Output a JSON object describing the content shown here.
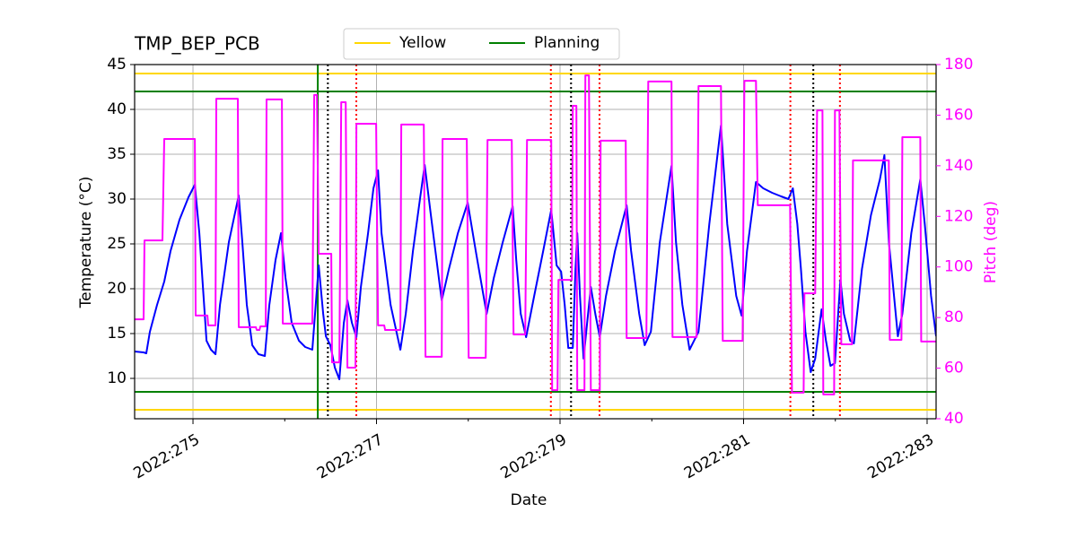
{
  "chart_data": {
    "type": "line",
    "title": "TMP_BEP_PCB",
    "xlabel": "Date",
    "ylabel": "Temperature (°C)",
    "y2label": "Pitch (deg)",
    "xlim": [
      274.364,
      283.098
    ],
    "xticks": [
      {
        "value": 275,
        "label": "2022:275"
      },
      {
        "value": 277,
        "label": "2022:277"
      },
      {
        "value": 279,
        "label": "2022:279"
      },
      {
        "value": 281,
        "label": "2022:281"
      },
      {
        "value": 283,
        "label": "2022:283"
      }
    ],
    "xminorticks": [
      276,
      278,
      280,
      282
    ],
    "ylim": [
      5.5,
      45
    ],
    "yticks": [
      10,
      15,
      20,
      25,
      30,
      35,
      40,
      45
    ],
    "y2lim": [
      40,
      180
    ],
    "y2ticks": [
      40,
      60,
      80,
      100,
      120,
      140,
      160,
      180
    ],
    "y2color": "#ff00ff",
    "grid": true,
    "legend": "upper center",
    "limits": [
      {
        "name": "Yellow",
        "color": "#ffd700",
        "values": [
          44,
          6.5
        ]
      },
      {
        "name": "Planning",
        "color": "#008000",
        "values": [
          42,
          8.5
        ]
      }
    ],
    "vlines": [
      {
        "color": "#008000",
        "style": "solid",
        "x": [
          276.36
        ]
      },
      {
        "color": "#000000",
        "style": "dotted",
        "x": [
          276.47,
          279.12,
          281.76
        ]
      },
      {
        "color": "#ff0000",
        "style": "dotted",
        "x": [
          276.78,
          278.9,
          279.43,
          281.51,
          282.05
        ]
      }
    ],
    "series": [
      {
        "color": "#0000ff",
        "axis": "y",
        "x": [
          274.364,
          274.462,
          274.491,
          274.53,
          274.609,
          274.687,
          274.755,
          274.853,
          274.951,
          275.02,
          275.069,
          275.147,
          275.196,
          275.245,
          275.294,
          275.391,
          275.499,
          275.538,
          275.587,
          275.646,
          275.714,
          275.783,
          275.832,
          275.9,
          275.959,
          276.008,
          276.076,
          276.155,
          276.223,
          276.301,
          276.37,
          276.419,
          276.448,
          276.497,
          276.546,
          276.595,
          276.644,
          276.683,
          276.732,
          276.781,
          276.83,
          276.908,
          276.967,
          277.016,
          277.055,
          277.153,
          277.26,
          277.319,
          277.397,
          277.476,
          277.525,
          277.593,
          277.691,
          277.711,
          277.789,
          277.887,
          277.994,
          278.082,
          278.2,
          278.278,
          278.376,
          278.484,
          278.523,
          278.572,
          278.63,
          278.718,
          278.816,
          278.904,
          278.963,
          279.012,
          279.051,
          279.09,
          279.139,
          279.168,
          279.188,
          279.217,
          279.256,
          279.295,
          279.335,
          279.384,
          279.433,
          279.501,
          279.599,
          279.726,
          279.775,
          279.863,
          279.922,
          279.99,
          280.088,
          280.215,
          280.264,
          280.333,
          280.411,
          280.509,
          280.626,
          280.754,
          280.822,
          280.92,
          280.979,
          281.037,
          281.135,
          281.214,
          281.311,
          281.409,
          281.488,
          281.537,
          281.586,
          281.625,
          281.674,
          281.732,
          281.781,
          281.85,
          281.898,
          281.947,
          281.996,
          282.055,
          282.094,
          282.162,
          282.202,
          282.29,
          282.388,
          282.486,
          282.535,
          282.584,
          282.681,
          282.73,
          282.828,
          282.926,
          282.975,
          283.043,
          283.098
        ],
        "values": [
          13.0,
          12.9,
          12.8,
          15.2,
          18.2,
          20.8,
          24.2,
          27.7,
          30.2,
          31.6,
          26.2,
          14.2,
          13.2,
          12.7,
          18.2,
          25.2,
          30.4,
          25.2,
          18.2,
          13.7,
          12.7,
          12.5,
          18.2,
          23.2,
          26.2,
          21.2,
          16.2,
          14.2,
          13.5,
          13.2,
          22.6,
          17.2,
          14.7,
          13.7,
          11.2,
          9.9,
          16.2,
          18.7,
          16.2,
          14.6,
          20.2,
          26.2,
          31.2,
          33.2,
          26.2,
          18.2,
          13.2,
          17.2,
          24.2,
          30.2,
          33.8,
          28.2,
          20.2,
          18.7,
          22.2,
          26.2,
          29.6,
          24.2,
          17.2,
          21.2,
          25.2,
          29.2,
          23.2,
          17.2,
          14.6,
          19.2,
          24.2,
          28.8,
          22.6,
          21.9,
          18.2,
          13.4,
          13.4,
          22.2,
          26.2,
          19.2,
          12.2,
          16.2,
          20.2,
          17.2,
          14.6,
          19.2,
          24.2,
          29.3,
          24.2,
          17.2,
          13.7,
          15.2,
          25.2,
          33.7,
          25.2,
          18.2,
          13.2,
          15.2,
          27.2,
          38.2,
          27.2,
          19.2,
          17.0,
          24.2,
          31.9,
          31.2,
          30.7,
          30.3,
          30.0,
          31.2,
          27.2,
          22.2,
          15.2,
          10.7,
          12.2,
          17.7,
          14.2,
          11.4,
          11.7,
          21.0,
          17.2,
          14.2,
          13.9,
          22.2,
          28.2,
          32.2,
          34.9,
          25.2,
          14.7,
          17.2,
          26.2,
          32.2,
          27.2,
          19.2,
          14.7
        ]
      },
      {
        "color": "#ff00ff",
        "axis": "y2",
        "x": [
          274.364,
          274.462,
          274.472,
          274.667,
          274.687,
          275.02,
          275.029,
          275.157,
          275.166,
          275.245,
          275.254,
          275.489,
          275.499,
          275.685,
          275.695,
          275.724,
          275.734,
          275.793,
          275.802,
          275.969,
          275.979,
          276.301,
          276.321,
          276.35,
          276.37,
          276.507,
          276.516,
          276.595,
          276.615,
          276.664,
          276.683,
          276.771,
          276.781,
          276.996,
          277.016,
          277.084,
          277.094,
          277.26,
          277.27,
          277.515,
          277.534,
          277.711,
          277.72,
          277.984,
          278.004,
          278.19,
          278.21,
          278.474,
          278.493,
          278.62,
          278.64,
          278.904,
          278.914,
          278.973,
          278.982,
          279.129,
          279.139,
          279.178,
          279.188,
          279.266,
          279.276,
          279.315,
          279.335,
          279.433,
          279.442,
          279.716,
          279.726,
          279.941,
          279.961,
          280.215,
          280.225,
          280.489,
          280.509,
          280.754,
          280.773,
          280.989,
          281.009,
          281.135,
          281.155,
          281.507,
          281.527,
          281.654,
          281.663,
          281.781,
          281.801,
          281.86,
          281.869,
          281.987,
          281.996,
          282.045,
          282.065,
          282.182,
          282.192,
          282.583,
          282.593,
          282.72,
          282.73,
          282.926,
          282.936,
          283.098
        ],
        "values": [
          79.3,
          79.3,
          110.5,
          110.5,
          150.6,
          150.6,
          80.8,
          80.8,
          76.9,
          76.9,
          166.5,
          166.5,
          76.2,
          76.2,
          75.1,
          75.1,
          76.5,
          76.5,
          166.2,
          166.2,
          77.6,
          77.6,
          168.0,
          168.0,
          105.2,
          105.2,
          62.3,
          62.3,
          165.1,
          165.1,
          60.2,
          60.2,
          156.6,
          156.6,
          76.9,
          76.9,
          75.1,
          75.1,
          156.3,
          156.3,
          64.5,
          64.5,
          150.6,
          150.6,
          64.1,
          64.1,
          150.2,
          150.2,
          73.3,
          73.3,
          150.2,
          150.2,
          51.3,
          51.3,
          94.9,
          94.9,
          163.7,
          163.7,
          51.3,
          51.3,
          175.7,
          175.7,
          51.3,
          51.3,
          149.9,
          149.9,
          71.9,
          71.9,
          173.3,
          173.3,
          72.3,
          72.3,
          171.5,
          171.5,
          70.8,
          70.8,
          173.6,
          173.6,
          124.4,
          124.4,
          50.3,
          50.3,
          89.6,
          89.6,
          161.9,
          161.9,
          49.6,
          49.6,
          161.9,
          161.9,
          69.4,
          69.4,
          142.1,
          142.1,
          71.2,
          71.2,
          151.3,
          151.3,
          70.5,
          70.5
        ]
      }
    ]
  }
}
